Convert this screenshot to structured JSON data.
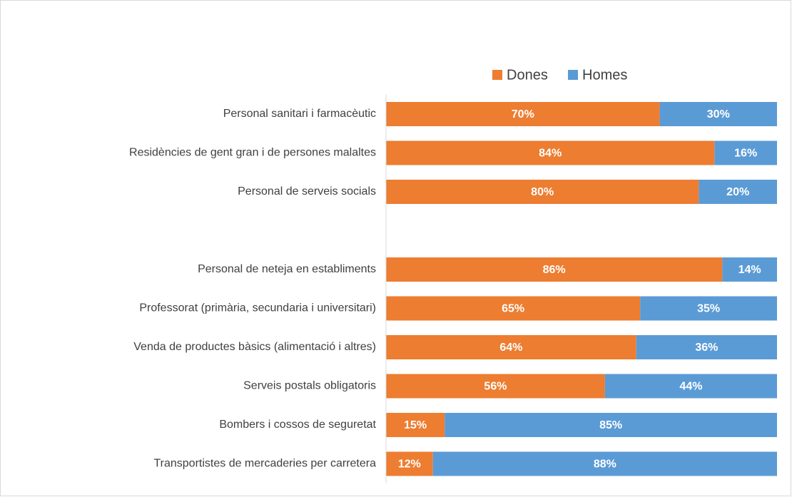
{
  "chart_data": {
    "type": "stacked_bar_horizontal",
    "categories": [
      "Personal sanitari i farmacèutic",
      "Residències de gent gran i de persones malaltes",
      "Personal de serveis socials",
      null,
      "Personal de neteja en establiments",
      "Professorat (primària, secundaria i universitari)",
      "Venda de productes bàsics (alimentació i altres)",
      "Serveis postals obligatoris",
      "Bombers i cossos de seguretat",
      "Transportistes de mercaderies per carretera"
    ],
    "series": [
      {
        "name": "Dones",
        "color": "#ed7d31",
        "values": [
          70,
          84,
          80,
          null,
          86,
          65,
          64,
          56,
          15,
          12
        ],
        "value_labels": [
          "70%",
          "84%",
          "80%",
          null,
          "86%",
          "65%",
          "64%",
          "56%",
          "15%",
          "12%"
        ]
      },
      {
        "name": "Homes",
        "color": "#5b9bd5",
        "values": [
          30,
          16,
          20,
          null,
          14,
          35,
          36,
          44,
          85,
          88
        ],
        "value_labels": [
          "30%",
          "16%",
          "20%",
          null,
          "14%",
          "35%",
          "36%",
          "44%",
          "85%",
          "88%"
        ]
      }
    ],
    "xlim": [
      0,
      100
    ],
    "legend": "top"
  }
}
